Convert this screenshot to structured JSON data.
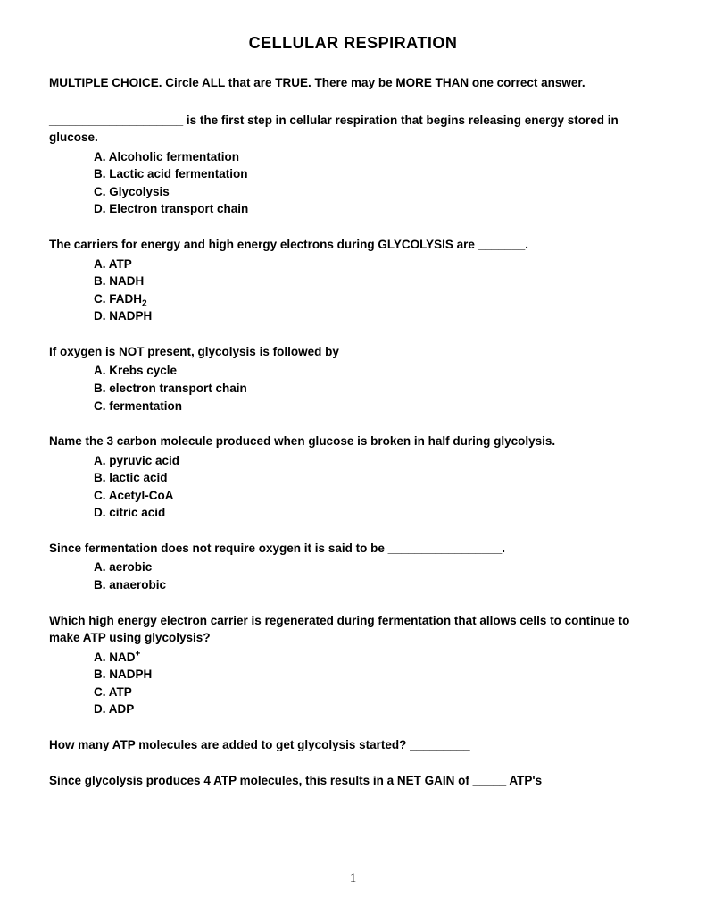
{
  "title": "CELLULAR RESPIRATION",
  "instructions_label": "MULTIPLE CHOICE",
  "instructions_rest": ". Circle ALL that are TRUE. There may be MORE THAN one correct answer.",
  "questions": [
    {
      "prompt": "____________________ is the first step in cellular respiration that begins releasing energy stored in glucose.",
      "options": [
        "A. Alcoholic fermentation",
        "B. Lactic acid fermentation",
        "C. Glycolysis",
        "D. Electron transport chain"
      ]
    },
    {
      "prompt": "The carriers for energy and high energy electrons during GLYCOLYSIS are _______.",
      "options": [
        "A. ATP",
        "B. NADH",
        "C. FADH",
        "D. NADPH"
      ],
      "subscript_index": 2,
      "subscript_text": "2"
    },
    {
      "prompt": "If oxygen is NOT present, glycolysis is followed by ____________________",
      "options": [
        "A. Krebs cycle",
        "B. electron transport chain",
        "C. fermentation"
      ]
    },
    {
      "prompt": "Name the 3 carbon molecule produced when glucose is broken in half during glycolysis.",
      "options": [
        "A. pyruvic acid",
        "B. lactic acid",
        "C. Acetyl-CoA",
        "D. citric acid"
      ]
    },
    {
      "prompt": "Since fermentation does not require oxygen it is said to be _________________.",
      "options": [
        "A. aerobic",
        "B. anaerobic"
      ]
    },
    {
      "prompt": "Which high energy electron carrier is regenerated during fermentation that allows cells to continue to make ATP using glycolysis?",
      "options": [
        "A. NAD",
        "B. NADPH",
        "C. ATP",
        "D. ADP"
      ],
      "superscript_index": 0,
      "superscript_text": "+"
    }
  ],
  "fill_in_1": "How many ATP molecules are added to get glycolysis started?   _________",
  "fill_in_2": "Since glycolysis produces 4 ATP molecules, this results in a NET GAIN of _____ ATP's",
  "page_number": "1"
}
